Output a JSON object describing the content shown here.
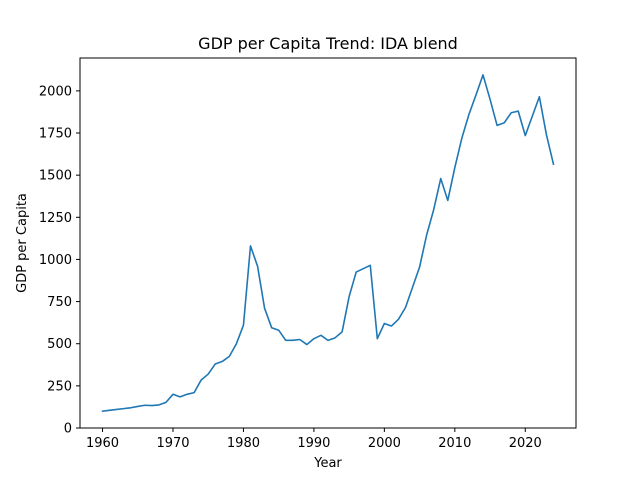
{
  "chart_data": {
    "type": "line",
    "title": "GDP per Capita Trend: IDA blend",
    "xlabel": "Year",
    "ylabel": "GDP per Capita",
    "xlim": [
      1956.8,
      2027.2
    ],
    "ylim": [
      0,
      2195
    ],
    "xticks": [
      1960,
      1970,
      1980,
      1990,
      2000,
      2010,
      2020
    ],
    "yticks": [
      0,
      250,
      500,
      750,
      1000,
      1250,
      1500,
      1750,
      2000
    ],
    "grid": false,
    "color": "#1f77b4",
    "series": [
      {
        "x": [
          1960,
          1961,
          1962,
          1963,
          1964,
          1965,
          1966,
          1967,
          1968,
          1969,
          1970,
          1971,
          1972,
          1973,
          1974,
          1975,
          1976,
          1977,
          1978,
          1979,
          1980,
          1981,
          1982,
          1983,
          1984,
          1985,
          1986,
          1987,
          1988,
          1989,
          1990,
          1991,
          1992,
          1993,
          1994,
          1995,
          1996,
          1997,
          1998,
          1999,
          2000,
          2001,
          2002,
          2003,
          2004,
          2005,
          2006,
          2007,
          2008,
          2009,
          2010,
          2011,
          2012,
          2013,
          2014,
          2015,
          2016,
          2017,
          2018,
          2019,
          2020,
          2021,
          2022,
          2023,
          2024
        ],
        "values": [
          100,
          105,
          110,
          115,
          120,
          128,
          135,
          133,
          137,
          152,
          200,
          185,
          200,
          210,
          285,
          320,
          380,
          395,
          425,
          500,
          610,
          1080,
          960,
          710,
          595,
          580,
          520,
          520,
          525,
          495,
          530,
          550,
          520,
          535,
          570,
          780,
          925,
          945,
          965,
          530,
          620,
          605,
          645,
          715,
          835,
          955,
          1145,
          1295,
          1480,
          1350,
          1545,
          1720,
          1860,
          1975,
          2095,
          1950,
          1795,
          1810,
          1870,
          1880,
          1735,
          1850,
          1965,
          1740,
          1565
        ]
      }
    ]
  }
}
